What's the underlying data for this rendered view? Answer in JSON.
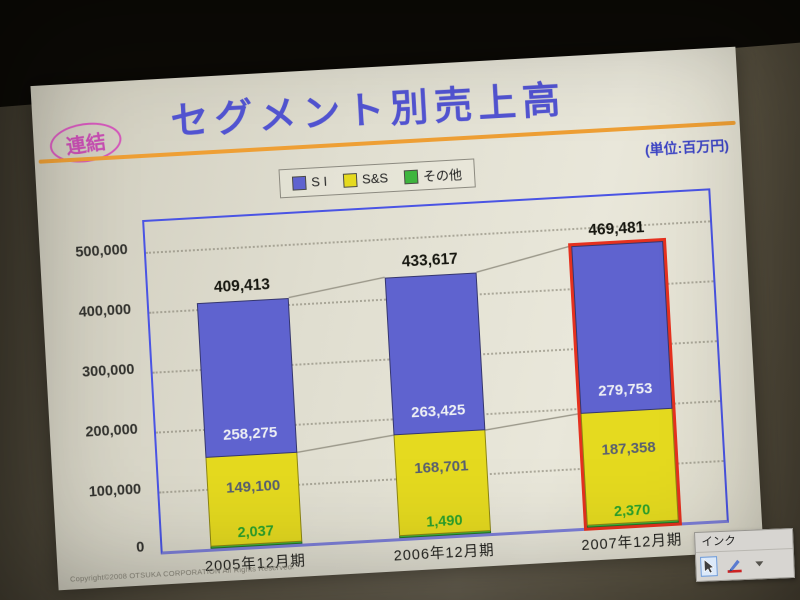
{
  "slide": {
    "badge": "連結",
    "title": "セグメント別売上高",
    "unit": "(単位:百万円)",
    "copyright": "Copyright©2008 OTSUKA CORPORATION All Rights Reserved."
  },
  "colors": {
    "title_blue": "#5254d2",
    "rule_orange": "#ee9f35",
    "badge_pink": "#d659bd",
    "plot_border_blue": "#4a54e4",
    "highlight_red": "#e5311f",
    "bar_si_blue": "#5f63cf",
    "bar_ss_yellow": "#e5da1f",
    "bar_other_green": "#3eb53e"
  },
  "chart_data": {
    "type": "bar",
    "stacked": true,
    "title": "セグメント別売上高",
    "unit": "百万円",
    "ylim": [
      0,
      550000
    ],
    "grid": true,
    "legend_position": "top",
    "yticks": [
      "500,000",
      "400,000",
      "300,000",
      "200,000",
      "100,000",
      "0"
    ],
    "categories": [
      "2005年12月期",
      "2006年12月期",
      "2007年12月期"
    ],
    "series": [
      {
        "name": "S I",
        "color": "#5f63cf",
        "values": [
          258275,
          263425,
          279753
        ]
      },
      {
        "name": "S&S",
        "color": "#e5da1f",
        "values": [
          149100,
          168701,
          187358
        ]
      },
      {
        "name": "その他",
        "color": "#3eb53e",
        "values": [
          2037,
          1490,
          2370
        ]
      }
    ],
    "totals": [
      409413,
      433617,
      469481
    ],
    "labels": {
      "totals": [
        "409,413",
        "433,617",
        "469,481"
      ],
      "si": [
        "258,275",
        "263,425",
        "279,753"
      ],
      "ss": [
        "149,100",
        "168,701",
        "187,358"
      ],
      "other": [
        "2,037",
        "1,490",
        "2,370"
      ]
    },
    "highlight_index": 2
  },
  "ink_toolbar": {
    "title": "インク"
  }
}
